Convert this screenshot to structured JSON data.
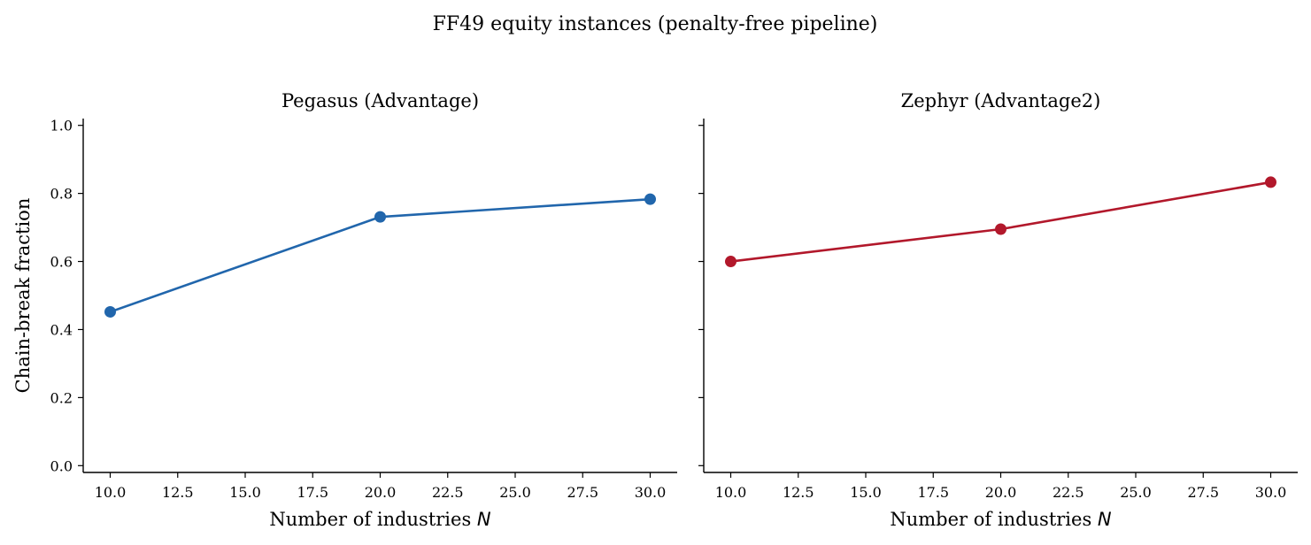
{
  "figure": {
    "suptitle": "FF49 equity instances (penalty-free pipeline)"
  },
  "chart_data": [
    {
      "type": "line",
      "title": "Pegasus (Advantage)",
      "xlabel": "Number of industries N",
      "xlabel_text": "Number of industries ",
      "xlabel_var": "N",
      "ylabel": "Chain-break fraction",
      "xlim": [
        9.0,
        31.0
      ],
      "ylim": [
        -0.02,
        1.02
      ],
      "xticks": [
        10.0,
        12.5,
        15.0,
        17.5,
        20.0,
        22.5,
        25.0,
        27.5,
        30.0
      ],
      "xtick_labels": [
        "10.0",
        "12.5",
        "15.0",
        "17.5",
        "20.0",
        "22.5",
        "25.0",
        "27.5",
        "30.0"
      ],
      "yticks": [
        0.0,
        0.2,
        0.4,
        0.6,
        0.8,
        1.0
      ],
      "ytick_labels": [
        "0.0",
        "0.2",
        "0.4",
        "0.6",
        "0.8",
        "1.0"
      ],
      "show_ytick_labels": true,
      "grid": false,
      "series": [
        {
          "x": [
            10,
            20,
            30
          ],
          "y": [
            0.452,
            0.731,
            0.783
          ],
          "color": "#2166ac"
        }
      ]
    },
    {
      "type": "line",
      "title": "Zephyr (Advantage2)",
      "xlabel": "Number of industries N",
      "xlabel_text": "Number of industries ",
      "xlabel_var": "N",
      "ylabel": "",
      "xlim": [
        9.0,
        31.0
      ],
      "ylim": [
        -0.02,
        1.02
      ],
      "xticks": [
        10.0,
        12.5,
        15.0,
        17.5,
        20.0,
        22.5,
        25.0,
        27.5,
        30.0
      ],
      "xtick_labels": [
        "10.0",
        "12.5",
        "15.0",
        "17.5",
        "20.0",
        "22.5",
        "25.0",
        "27.5",
        "30.0"
      ],
      "yticks": [
        0.0,
        0.2,
        0.4,
        0.6,
        0.8,
        1.0
      ],
      "ytick_labels": [
        "",
        "",
        "",
        "",
        "",
        ""
      ],
      "show_ytick_labels": false,
      "grid": false,
      "series": [
        {
          "x": [
            10,
            20,
            30
          ],
          "y": [
            0.6,
            0.695,
            0.833
          ],
          "color": "#b2182b"
        }
      ]
    }
  ]
}
